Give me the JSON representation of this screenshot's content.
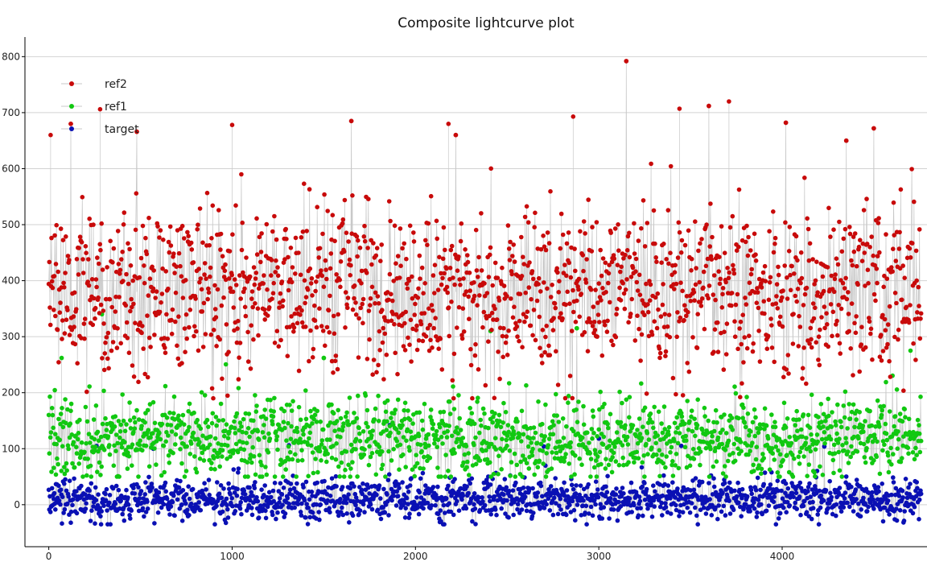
{
  "chart_data": {
    "type": "line",
    "title": "Composite lightcurve plot",
    "xlabel": "",
    "ylabel": "",
    "xlim": [
      -130,
      4790
    ],
    "ylim": [
      -75,
      835
    ],
    "x_ticks": [
      0,
      1000,
      2000,
      3000,
      4000
    ],
    "x_tick_labels": [
      "0",
      "1000",
      "2000",
      "3000",
      "4000"
    ],
    "y_ticks": [
      0,
      100,
      200,
      300,
      400,
      500,
      600,
      700,
      800
    ],
    "y_tick_labels": [
      "0",
      "100",
      "200",
      "300",
      "400",
      "500",
      "600",
      "700",
      "800"
    ],
    "grid": "horizontal",
    "legend_position": "top-left",
    "n_points": 4760,
    "line_color": "#c8c8c8",
    "series": [
      {
        "name": "target",
        "color": "#0a10b4",
        "center": 10,
        "spread": 18,
        "range": [
          -35,
          145
        ],
        "spikes": [
          [
            260,
            105
          ],
          [
            570,
            100
          ],
          [
            1310,
            106
          ],
          [
            1860,
            142
          ],
          [
            2700,
            104
          ],
          [
            3000,
            118
          ],
          [
            3450,
            105
          ],
          [
            4230,
            104
          ]
        ]
      },
      {
        "name": "ref1",
        "color": "#11c811",
        "center": 120,
        "spread": 35,
        "range": [
          50,
          340
        ],
        "spikes": [
          [
            290,
            340
          ],
          [
            2410,
            310
          ],
          [
            2880,
            315
          ],
          [
            1500,
            262
          ],
          [
            70,
            262
          ],
          [
            4700,
            275
          ]
        ]
      },
      {
        "name": "ref2",
        "color": "#c80a0a",
        "center": 380,
        "spread": 75,
        "range": [
          190,
          795
        ],
        "spikes": [
          [
            3150,
            792
          ],
          [
            3710,
            720
          ],
          [
            3440,
            707
          ],
          [
            3600,
            712
          ],
          [
            2860,
            693
          ],
          [
            4020,
            682
          ],
          [
            1650,
            685
          ],
          [
            280,
            706
          ],
          [
            10,
            660
          ],
          [
            2180,
            680
          ],
          [
            1000,
            678
          ],
          [
            4500,
            672
          ],
          [
            4350,
            650
          ],
          [
            120,
            680
          ],
          [
            480,
            666
          ],
          [
            2220,
            660
          ]
        ]
      }
    ],
    "legend_order": [
      "ref2",
      "ref1",
      "target"
    ]
  }
}
